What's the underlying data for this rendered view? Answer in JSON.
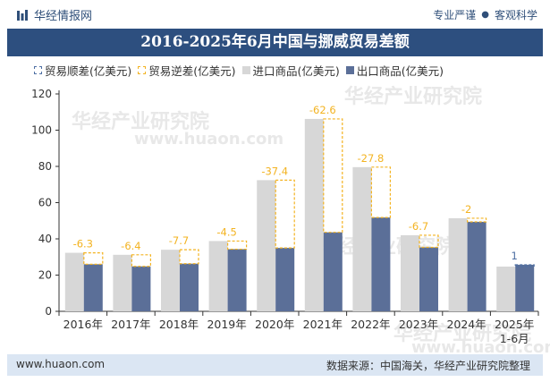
{
  "header": {
    "brand": "华经情报网",
    "slogan_left": "专业严谨",
    "slogan_right": "客观科学"
  },
  "title": "2016-2025年6月中国与挪威贸易差额",
  "legend": {
    "surplus": "贸易顺差(亿美元)",
    "deficit": "贸易逆差(亿美元)",
    "import": "进口商品(亿美元)",
    "export": "出口商品(亿美元)"
  },
  "footer": {
    "url": "www.huaon.com",
    "source": "数据来源：中国海关，华经产业研究院整理"
  },
  "watermark": {
    "line1": "华经产业研究院",
    "line2": "www.huaon.com"
  },
  "colors": {
    "import": "#d7d7d7",
    "export": "#5b6f98",
    "deficit": "#f3b321",
    "surplus": "#4e6fa3",
    "title_bg": "#2d4f7f"
  },
  "chart_data": {
    "type": "bar",
    "categories": [
      "2016年",
      "2017年",
      "2018年",
      "2019年",
      "2020年",
      "2021年",
      "2022年",
      "2023年",
      "2024年",
      "2025年 1-6月"
    ],
    "series": [
      {
        "name": "进口商品(亿美元)",
        "values": [
          32.3,
          31.2,
          34.0,
          38.8,
          72.4,
          106.2,
          79.6,
          42.0,
          51.4,
          24.7
        ]
      },
      {
        "name": "出口商品(亿美元)",
        "values": [
          26.0,
          24.8,
          26.3,
          34.3,
          35.0,
          43.6,
          51.8,
          35.3,
          49.4,
          25.7
        ]
      }
    ],
    "balance": {
      "labels": [
        "-6.3",
        "-6.4",
        "-7.7",
        "-4.5",
        "-37.4",
        "-62.6",
        "-27.8",
        "-6.7",
        "-2",
        "1"
      ],
      "values": [
        -6.3,
        -6.4,
        -7.7,
        -4.5,
        -37.4,
        -62.6,
        -27.8,
        -6.7,
        -2,
        1
      ]
    },
    "ylim": [
      0,
      120
    ],
    "yticks": [
      0,
      20,
      40,
      60,
      80,
      100,
      120
    ],
    "grid": false
  }
}
